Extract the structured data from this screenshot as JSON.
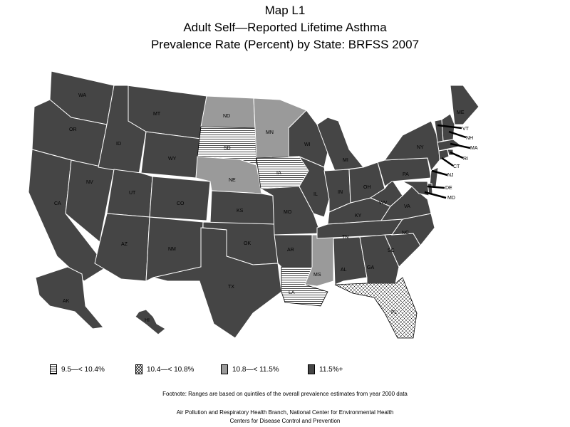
{
  "title": {
    "line1": "Map L1",
    "line2": "Adult Self—Reported Lifetime Asthma",
    "line3": "Prevalence Rate (Percent) by State: BRFSS 2007"
  },
  "legend": [
    {
      "label": "9.5—< 10.4%",
      "pattern": "horizontal-lines"
    },
    {
      "label": "10.4—< 10.8%",
      "pattern": "crosshatch"
    },
    {
      "label": "10.8—< 11.5%",
      "pattern": "gray"
    },
    {
      "label": "11.5%+",
      "pattern": "dark"
    }
  ],
  "colors": {
    "dark": "#454545",
    "gray": "#9a9a9a",
    "white": "#ffffff"
  },
  "states": {
    "WA": "dark",
    "OR": "dark",
    "CA": "dark",
    "NV": "dark",
    "ID": "dark",
    "MT": "dark",
    "WY": "dark",
    "UT": "dark",
    "CO": "dark",
    "AZ": "dark",
    "NM": "dark",
    "ND": "gray",
    "SD": "horizontal-lines",
    "NE": "gray",
    "KS": "dark",
    "OK": "dark",
    "TX": "dark",
    "MN": "gray",
    "IA": "horizontal-lines",
    "MO": "dark",
    "AR": "dark",
    "LA": "horizontal-lines",
    "WI": "dark",
    "IL": "dark",
    "MS": "gray",
    "MI": "dark",
    "IN": "dark",
    "KY": "dark",
    "TN": "dark",
    "AL": "dark",
    "OH": "dark",
    "WV": "dark",
    "GA": "dark",
    "FL": "crosshatch",
    "SC": "dark",
    "NC": "dark",
    "VA": "dark",
    "PA": "dark",
    "NY": "dark",
    "ME": "dark",
    "VT": "dark",
    "NH": "dark",
    "MA": "dark",
    "RI": "dark",
    "CT": "dark",
    "NJ": "dark",
    "DE": "dark",
    "MD": "dark",
    "AK": "dark",
    "HI": "dark"
  },
  "footnote": {
    "line1": "Footnote: Ranges are based on quintiles of the overall prevalence estimates from year 2000 data",
    "line2": "Air Pollution and Respiratory Health Branch, National Center for Environmental Health",
    "line3": "Centers for Disease Control and Prevention"
  }
}
